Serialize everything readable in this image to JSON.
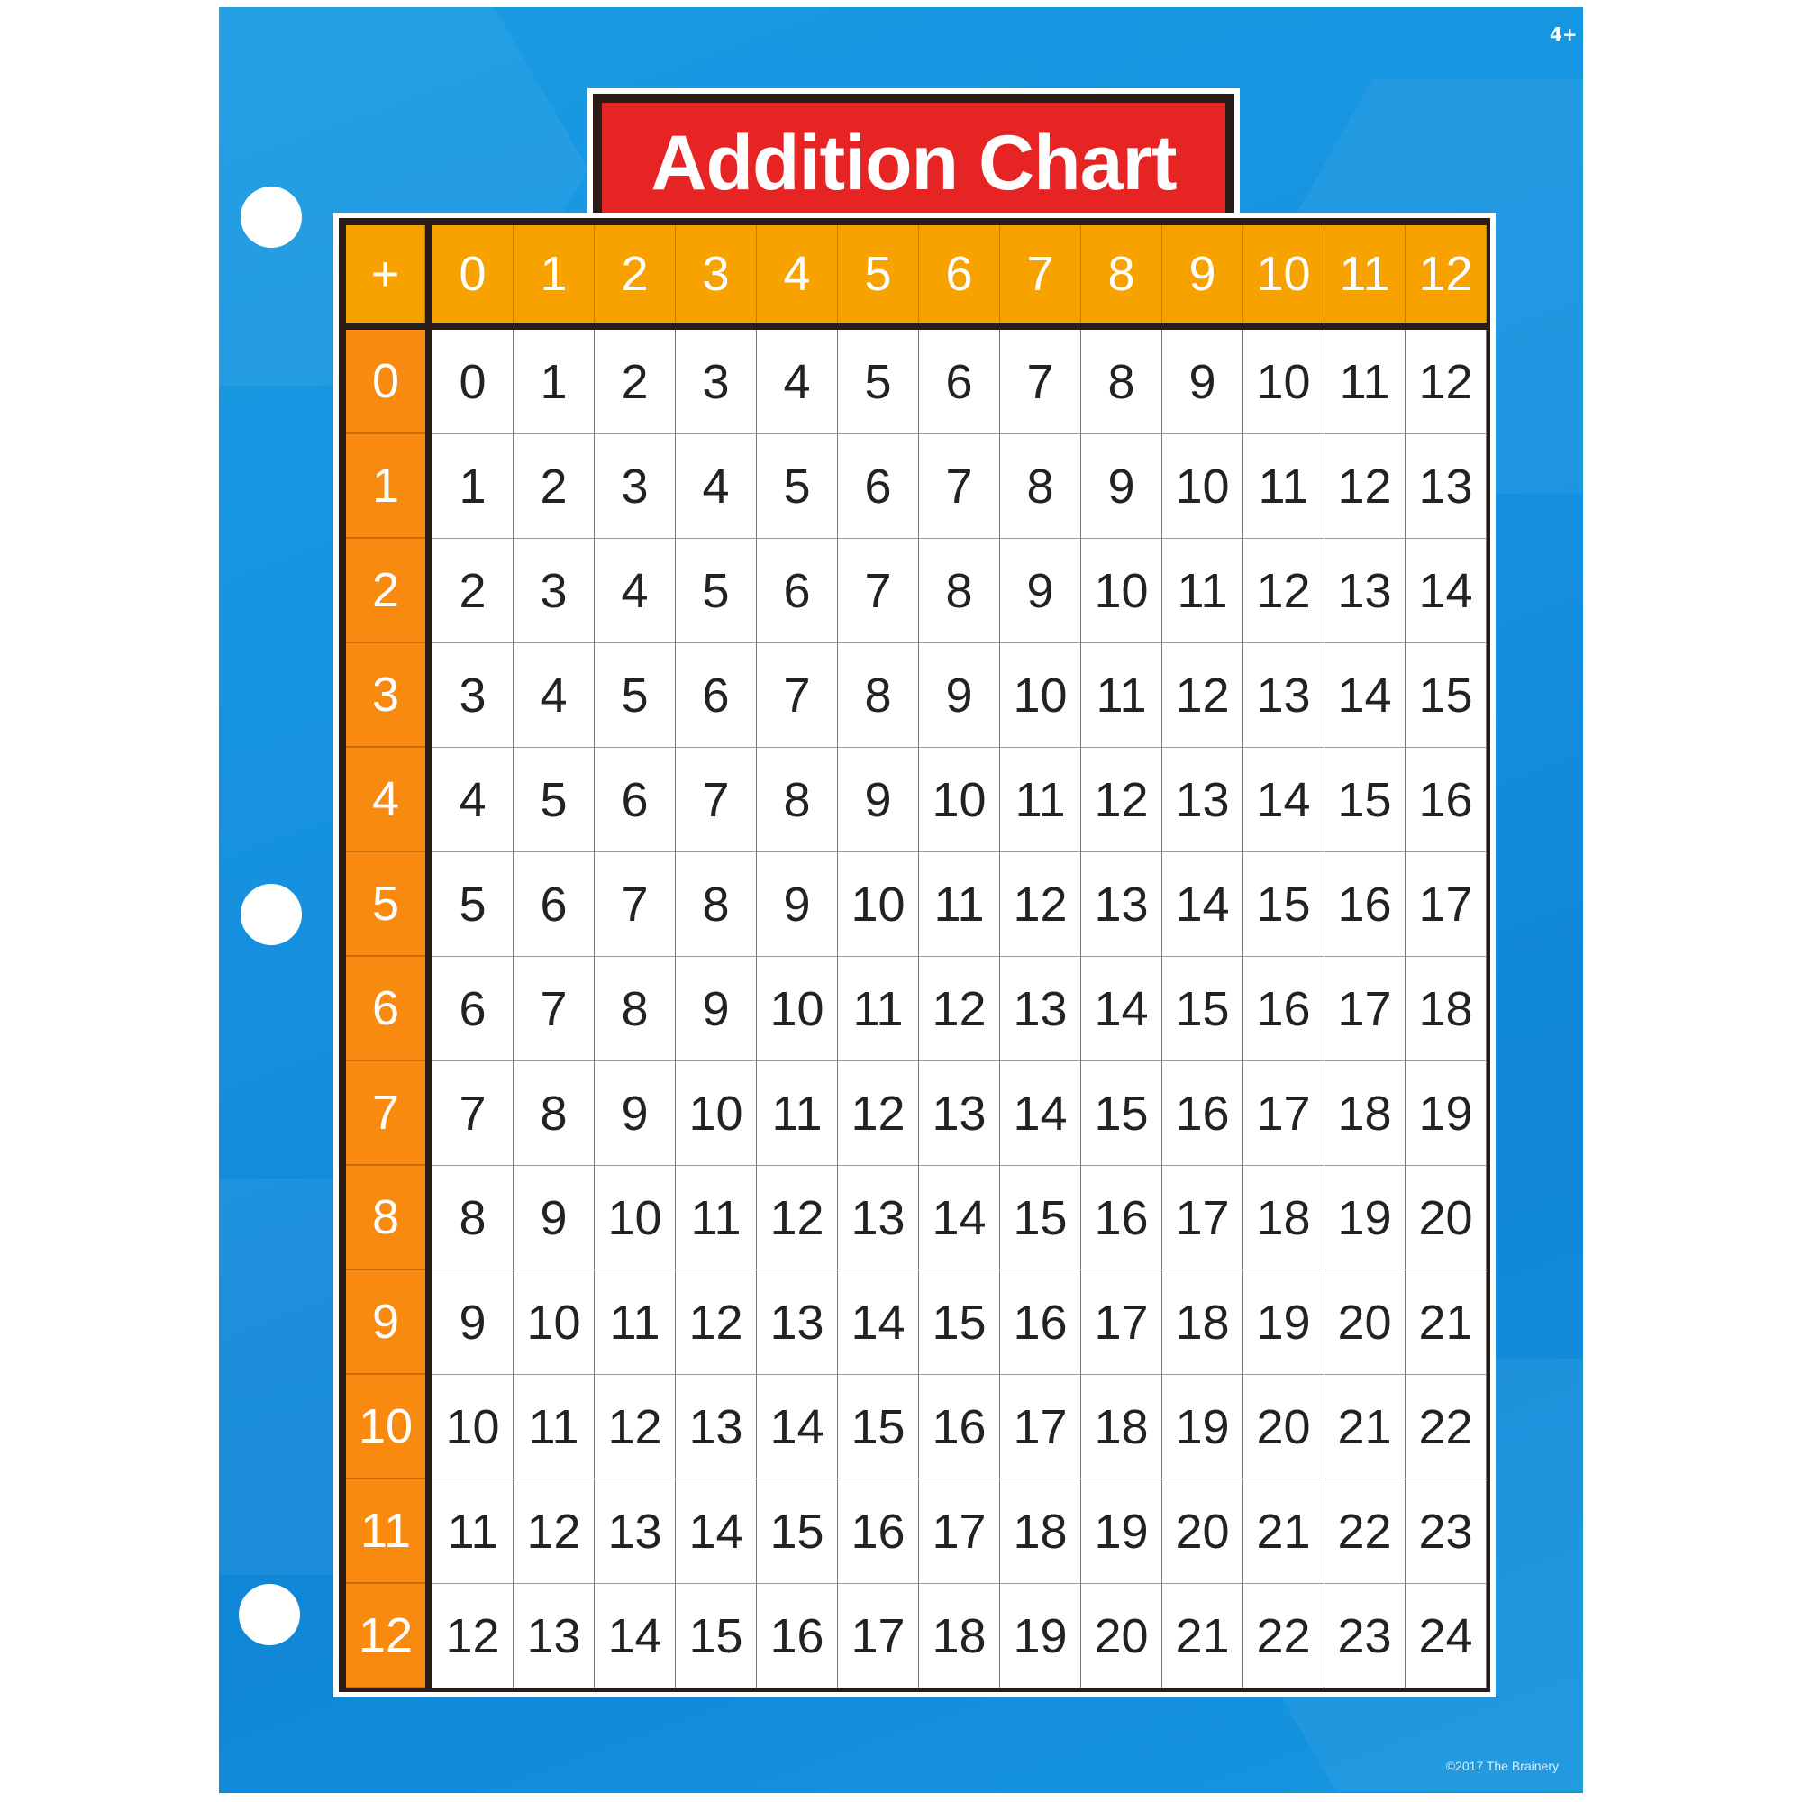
{
  "title": "Addition Chart",
  "age_label": "4+",
  "copyright": "©2017 The Brainery",
  "colors": {
    "background": "#1591df",
    "title_bg": "#e62424",
    "header_bg": "#f8a200",
    "row_header_bg": "#f88a10",
    "border": "#2a1d17"
  },
  "chart_data": {
    "type": "table",
    "corner": "+",
    "column_headers": [
      "0",
      "1",
      "2",
      "3",
      "4",
      "5",
      "6",
      "7",
      "8",
      "9",
      "10",
      "11",
      "12"
    ],
    "row_headers": [
      "0",
      "1",
      "2",
      "3",
      "4",
      "5",
      "6",
      "7",
      "8",
      "9",
      "10",
      "11",
      "12"
    ],
    "rows": [
      [
        0,
        1,
        2,
        3,
        4,
        5,
        6,
        7,
        8,
        9,
        10,
        11,
        12
      ],
      [
        1,
        2,
        3,
        4,
        5,
        6,
        7,
        8,
        9,
        10,
        11,
        12,
        13
      ],
      [
        2,
        3,
        4,
        5,
        6,
        7,
        8,
        9,
        10,
        11,
        12,
        13,
        14
      ],
      [
        3,
        4,
        5,
        6,
        7,
        8,
        9,
        10,
        11,
        12,
        13,
        14,
        15
      ],
      [
        4,
        5,
        6,
        7,
        8,
        9,
        10,
        11,
        12,
        13,
        14,
        15,
        16
      ],
      [
        5,
        6,
        7,
        8,
        9,
        10,
        11,
        12,
        13,
        14,
        15,
        16,
        17
      ],
      [
        6,
        7,
        8,
        9,
        10,
        11,
        12,
        13,
        14,
        15,
        16,
        17,
        18
      ],
      [
        7,
        8,
        9,
        10,
        11,
        12,
        13,
        14,
        15,
        16,
        17,
        18,
        19
      ],
      [
        8,
        9,
        10,
        11,
        12,
        13,
        14,
        15,
        16,
        17,
        18,
        19,
        20
      ],
      [
        9,
        10,
        11,
        12,
        13,
        14,
        15,
        16,
        17,
        18,
        19,
        20,
        21
      ],
      [
        10,
        11,
        12,
        13,
        14,
        15,
        16,
        17,
        18,
        19,
        20,
        21,
        22
      ],
      [
        11,
        12,
        13,
        14,
        15,
        16,
        17,
        18,
        19,
        20,
        21,
        22,
        23
      ],
      [
        12,
        13,
        14,
        15,
        16,
        17,
        18,
        19,
        20,
        21,
        22,
        23,
        24
      ]
    ]
  }
}
